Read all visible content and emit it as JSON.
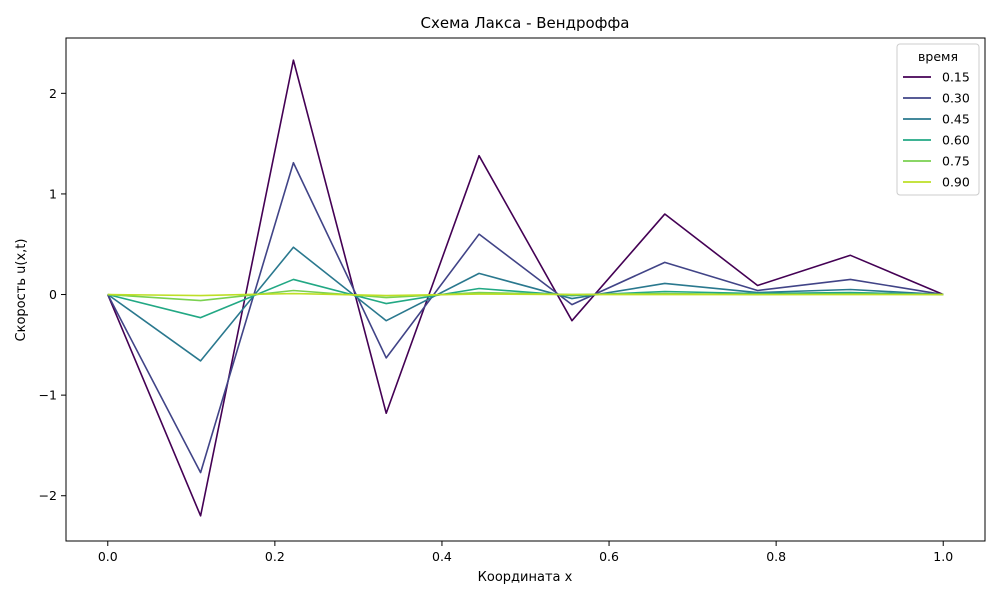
{
  "chart_data": {
    "type": "line",
    "title": "Схема Лакса - Вендроффа",
    "xlabel": "Координата x",
    "ylabel": "Скорость u(x,t)",
    "xlim": [
      -0.05,
      1.05
    ],
    "ylim": [
      -2.45,
      2.55
    ],
    "xticks": [
      0.0,
      0.2,
      0.4,
      0.6,
      0.8,
      1.0
    ],
    "xtick_labels": [
      "0.0",
      "0.2",
      "0.4",
      "0.6",
      "0.8",
      "1.0"
    ],
    "yticks": [
      -2,
      -1,
      0,
      1,
      2
    ],
    "ytick_labels": [
      "−2",
      "−1",
      "0",
      "1",
      "2"
    ],
    "grid": false,
    "legend": {
      "title": "время",
      "placement": "top-right"
    },
    "x": [
      0.0,
      0.1111,
      0.2222,
      0.3333,
      0.4444,
      0.5556,
      0.6667,
      0.7778,
      0.8889,
      1.0
    ],
    "series": [
      {
        "name": "0.15",
        "color": "#440154",
        "values": [
          0.0,
          -2.2,
          2.33,
          -1.18,
          1.38,
          -0.26,
          0.8,
          0.09,
          0.39,
          0.0
        ]
      },
      {
        "name": "0.30",
        "color": "#414487",
        "values": [
          0.0,
          -1.77,
          1.31,
          -0.63,
          0.6,
          -0.1,
          0.32,
          0.04,
          0.15,
          0.0
        ]
      },
      {
        "name": "0.45",
        "color": "#2a788e",
        "values": [
          0.0,
          -0.66,
          0.47,
          -0.26,
          0.21,
          -0.04,
          0.11,
          0.02,
          0.05,
          0.0
        ]
      },
      {
        "name": "0.60",
        "color": "#22a884",
        "values": [
          0.0,
          -0.23,
          0.15,
          -0.09,
          0.06,
          -0.01,
          0.03,
          0.01,
          0.02,
          0.0
        ]
      },
      {
        "name": "0.75",
        "color": "#7ad151",
        "values": [
          0.0,
          -0.06,
          0.04,
          -0.03,
          0.02,
          0.0,
          0.01,
          0.0,
          0.005,
          0.0
        ]
      },
      {
        "name": "0.90",
        "color": "#bddf26",
        "values": [
          0.0,
          -0.01,
          0.01,
          -0.01,
          0.005,
          0.0,
          0.0,
          0.0,
          0.0,
          0.0
        ]
      }
    ]
  }
}
